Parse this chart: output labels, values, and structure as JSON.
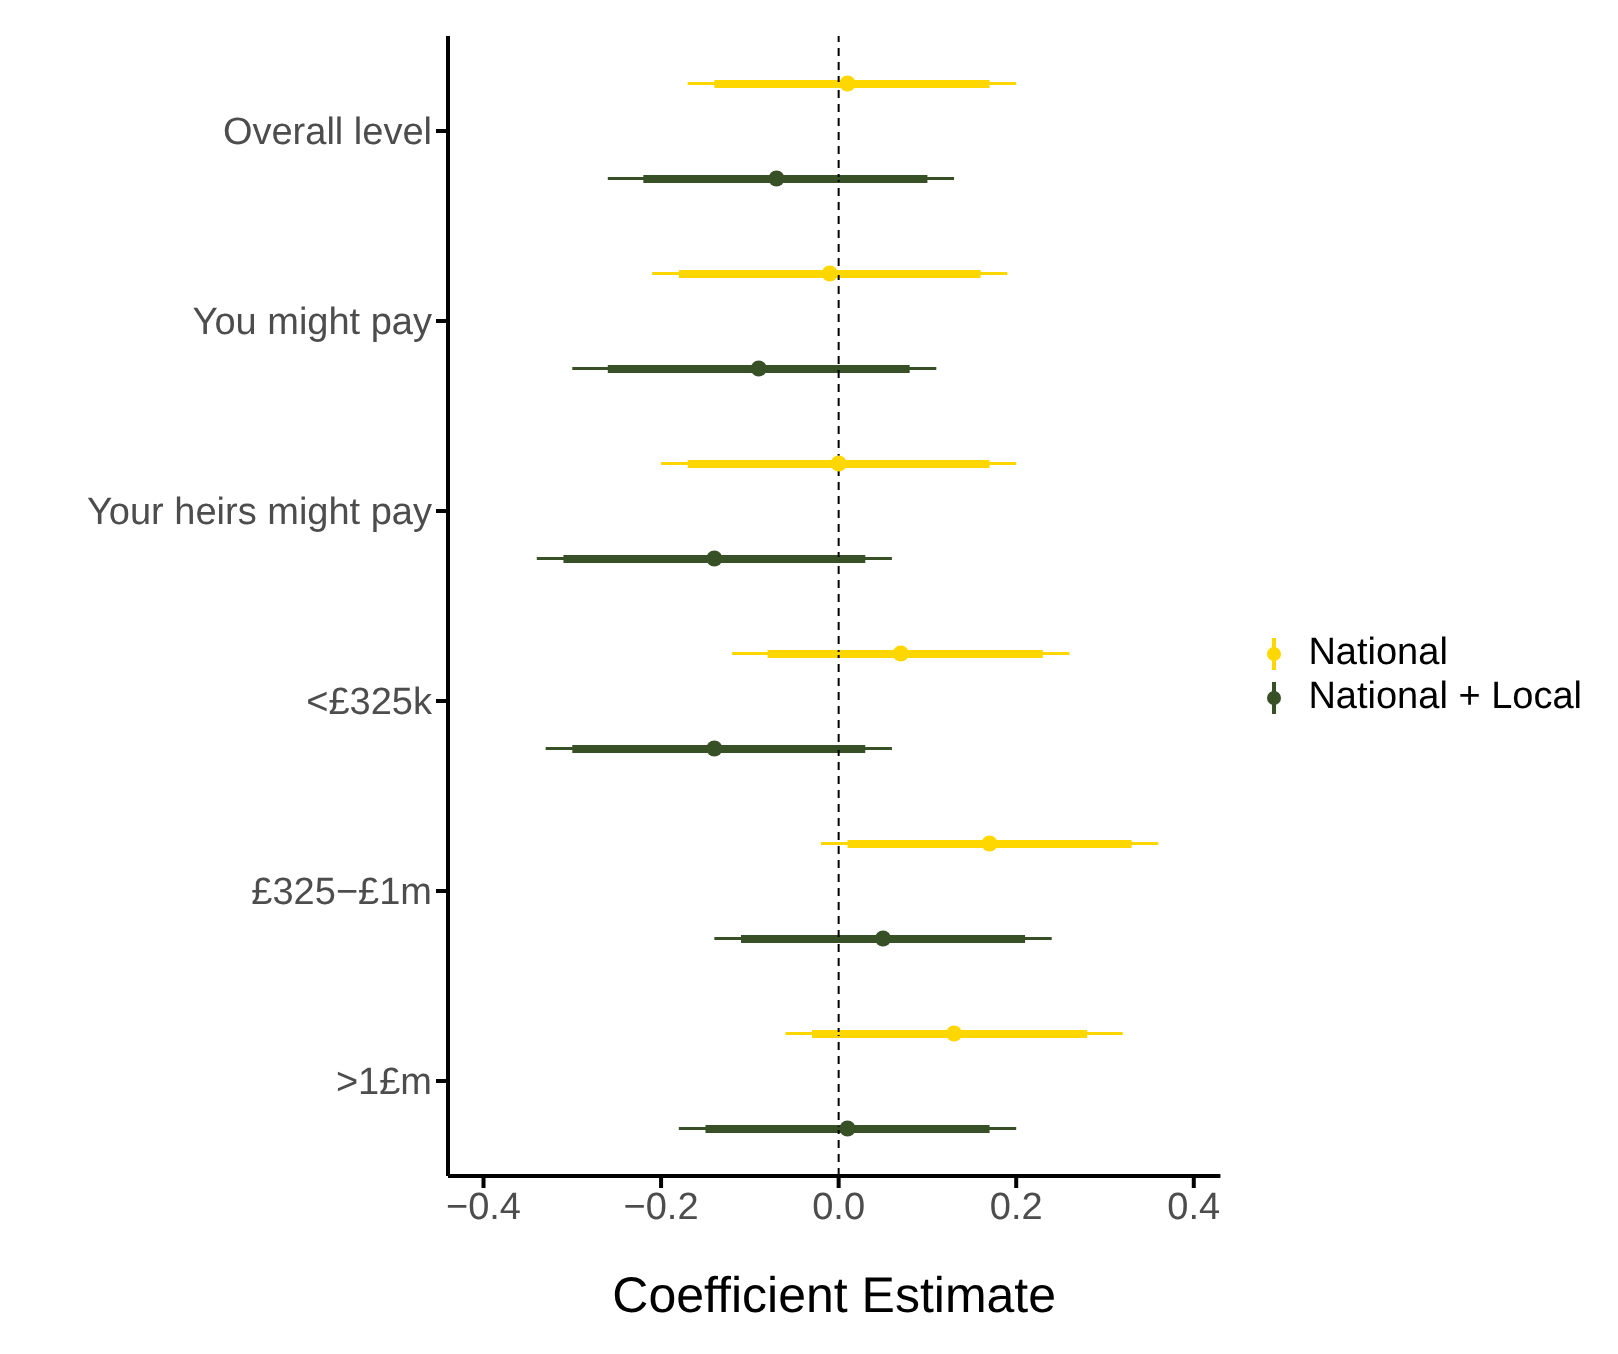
{
  "chart_data": {
    "type": "scatter",
    "orientation": "horizontal",
    "xlabel": "Coefficient Estimate",
    "categories": [
      "Overall level",
      "You might pay",
      "Your heirs might pay",
      "<£325k",
      "£325−£1m",
      ">1£m"
    ],
    "xlim": [
      -0.44,
      0.43
    ],
    "xticks": [
      {
        "value": -0.4,
        "label": "−0.4"
      },
      {
        "value": -0.2,
        "label": "−0.2"
      },
      {
        "value": 0,
        "label": "0.0"
      },
      {
        "value": 0.2,
        "label": "0.2"
      },
      {
        "value": 0.4,
        "label": "0.4"
      }
    ],
    "series": [
      {
        "name": "National",
        "color": "#ffd700",
        "values": [
          0.01,
          -0.01,
          0.0,
          0.07,
          0.17,
          0.13
        ],
        "errors": [
          [
            -0.17,
            0.2
          ],
          [
            -0.21,
            0.19
          ],
          [
            -0.2,
            0.2
          ],
          [
            -0.12,
            0.26
          ],
          [
            -0.02,
            0.36
          ],
          [
            -0.06,
            0.32
          ]
        ]
      },
      {
        "name": "National + Local",
        "color": "#385025",
        "values": [
          -0.07,
          -0.09,
          -0.14,
          -0.14,
          0.05,
          0.01
        ],
        "errors": [
          [
            -0.26,
            0.13
          ],
          [
            -0.3,
            0.11
          ],
          [
            -0.34,
            0.06
          ],
          [
            -0.33,
            0.06
          ],
          [
            -0.14,
            0.24
          ],
          [
            -0.18,
            0.2
          ]
        ]
      },
      {
        "type": "bar",
        "color": "#ffd700",
        "base": [
          -0.14,
          -0.18,
          -0.17,
          -0.08,
          0.01,
          -0.03
        ],
        "values": [
          0.31,
          0.34,
          0.34,
          0.31,
          0.32,
          0.31
        ]
      },
      {
        "type": "bar",
        "color": "#385025",
        "base": [
          -0.22,
          -0.26,
          -0.31,
          -0.3,
          -0.11,
          -0.15
        ],
        "values": [
          0.32,
          0.34,
          0.34,
          0.33,
          0.32,
          0.32
        ]
      }
    ],
    "ref_lines": [
      {
        "axis": "x",
        "value": 0,
        "line_style": "dashed"
      }
    ],
    "marker": "circle",
    "legend": "right",
    "grid": false
  }
}
